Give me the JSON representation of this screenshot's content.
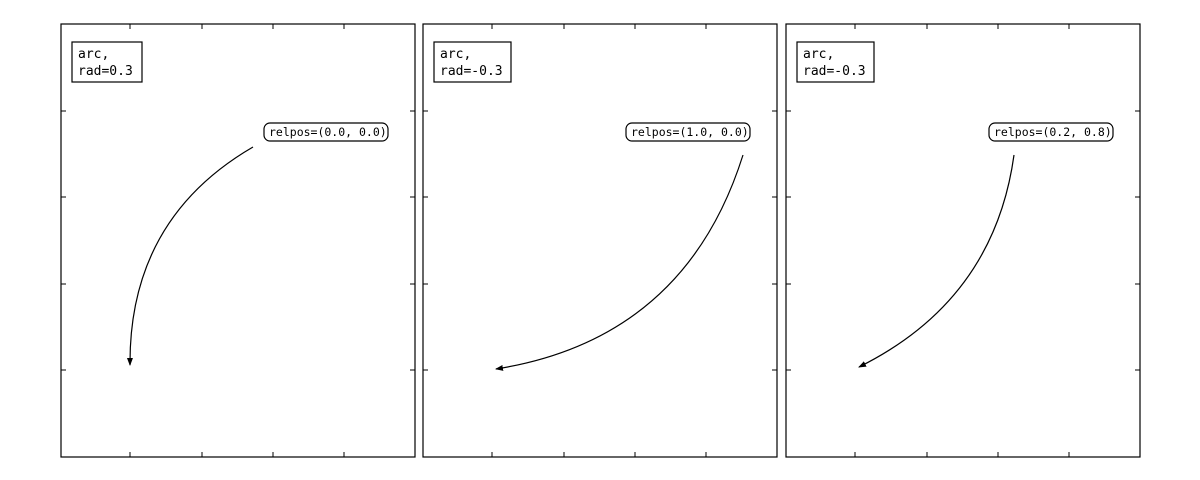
{
  "panels": [
    {
      "mode_lines": [
        "arc,",
        "rad=0.3"
      ],
      "annotation": "relpos=(0.0, 0.0)",
      "connection": {
        "style": "arc",
        "rad": 0.3
      },
      "relpos": [
        0.0,
        0.0
      ]
    },
    {
      "mode_lines": [
        "arc,",
        "rad=-0.3"
      ],
      "annotation": "relpos=(1.0, 0.0)",
      "connection": {
        "style": "arc",
        "rad": -0.3
      },
      "relpos": [
        1.0,
        0.0
      ]
    },
    {
      "mode_lines": [
        "arc,",
        "rad=-0.3"
      ],
      "annotation": "relpos=(0.2, 0.8)",
      "connection": {
        "style": "arc",
        "rad": -0.3
      },
      "relpos": [
        0.2,
        0.8
      ]
    }
  ]
}
